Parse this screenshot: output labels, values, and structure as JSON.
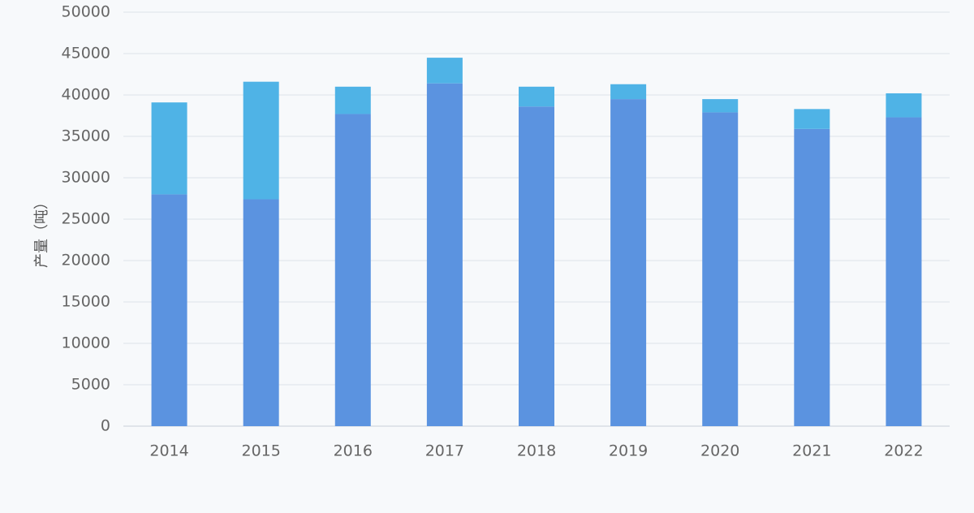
{
  "chart_data": {
    "type": "bar",
    "stacked": true,
    "title": "",
    "xlabel": "",
    "ylabel": "产量（吨）",
    "ylim": [
      0,
      50000
    ],
    "yticks": [
      0,
      5000,
      10000,
      15000,
      20000,
      25000,
      30000,
      35000,
      40000,
      45000,
      50000
    ],
    "grid": true,
    "categories": [
      "2014",
      "2015",
      "2016",
      "2017",
      "2018",
      "2019",
      "2020",
      "2021",
      "2022"
    ],
    "series": [
      {
        "color": "#5b93e0",
        "values": [
          28000,
          27400,
          37700,
          41400,
          38600,
          39500,
          37900,
          35900,
          37300
        ]
      },
      {
        "color": "#4fb3e6",
        "values": [
          11100,
          14200,
          3300,
          3100,
          2400,
          1800,
          1600,
          2400,
          2900
        ]
      }
    ]
  }
}
